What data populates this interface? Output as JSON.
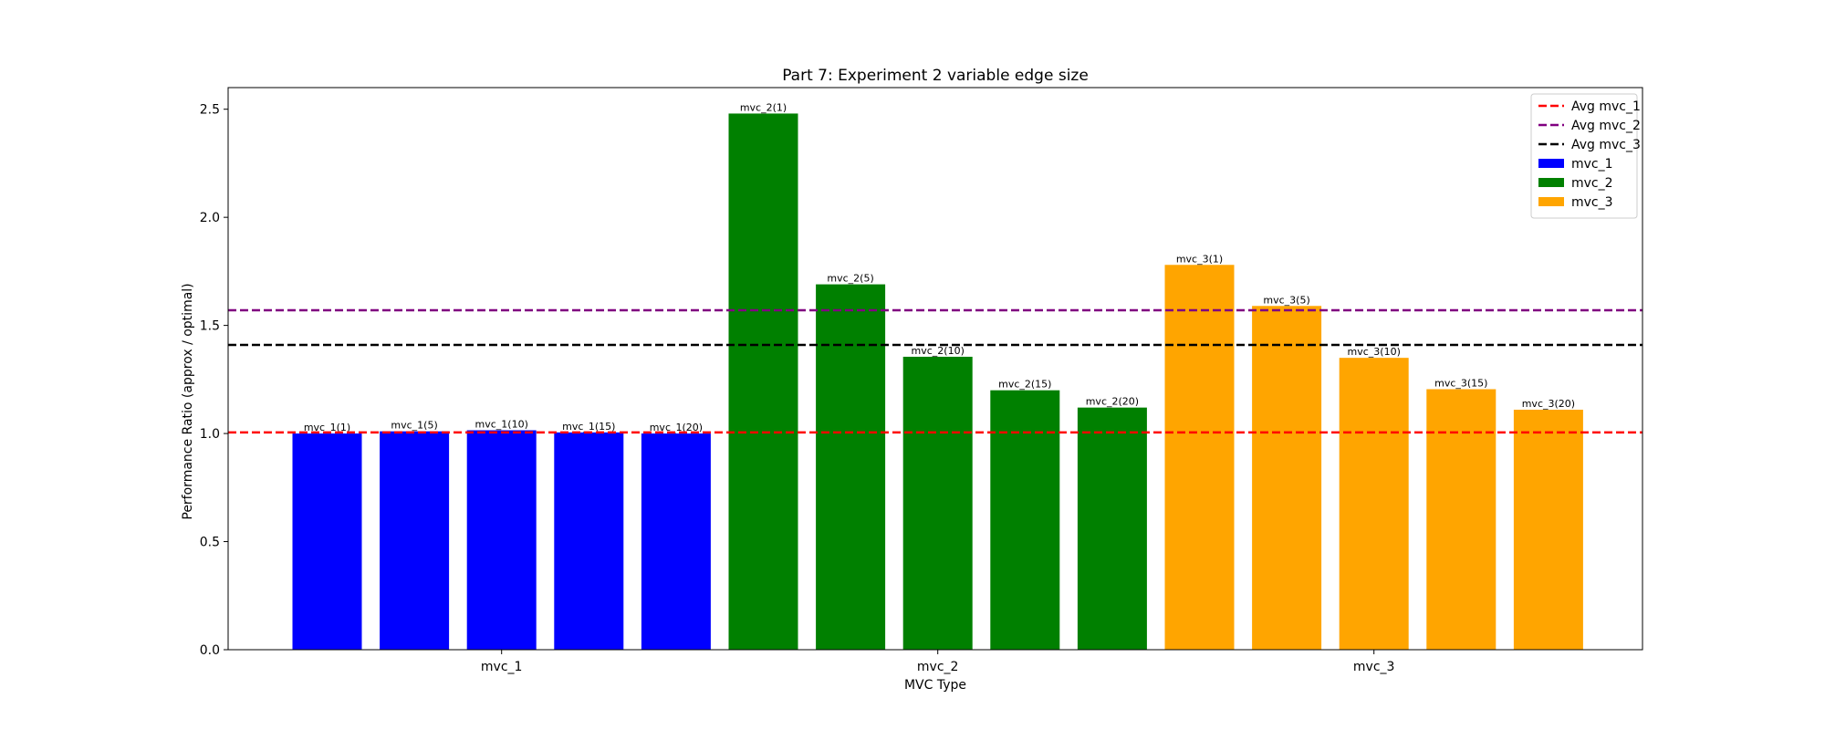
{
  "chart_data": {
    "type": "bar",
    "title": "Part 7: Experiment 2 variable edge size",
    "xlabel": "MVC Type",
    "ylabel": "Performance Ratio (approx / optimal)",
    "ylim": [
      0,
      2.6
    ],
    "yticks": [
      "0.0",
      "0.5",
      "1.0",
      "1.5",
      "2.0",
      "2.5"
    ],
    "grid": false,
    "legend_position": "top-right",
    "groups": [
      {
        "name": "mvc_1",
        "color": "#0000ff",
        "avg": 1.005,
        "avg_color": "#ff0000",
        "avg_label": "Avg mvc_1",
        "bars": [
          {
            "label": "mvc_1(1)",
            "value": 1.0
          },
          {
            "label": "mvc_1(5)",
            "value": 1.01
          },
          {
            "label": "mvc_1(10)",
            "value": 1.015
          },
          {
            "label": "mvc_1(15)",
            "value": 1.005
          },
          {
            "label": "mvc_1(20)",
            "value": 1.0
          }
        ]
      },
      {
        "name": "mvc_2",
        "color": "#008000",
        "avg": 1.57,
        "avg_color": "#800080",
        "avg_label": "Avg mvc_2",
        "bars": [
          {
            "label": "mvc_2(1)",
            "value": 2.48
          },
          {
            "label": "mvc_2(5)",
            "value": 1.69
          },
          {
            "label": "mvc_2(10)",
            "value": 1.355
          },
          {
            "label": "mvc_2(15)",
            "value": 1.2
          },
          {
            "label": "mvc_2(20)",
            "value": 1.12
          }
        ]
      },
      {
        "name": "mvc_3",
        "color": "#ffa500",
        "avg": 1.41,
        "avg_color": "#000000",
        "avg_label": "Avg mvc_3",
        "bars": [
          {
            "label": "mvc_3(1)",
            "value": 1.78
          },
          {
            "label": "mvc_3(5)",
            "value": 1.59
          },
          {
            "label": "mvc_3(10)",
            "value": 1.35
          },
          {
            "label": "mvc_3(15)",
            "value": 1.205
          },
          {
            "label": "mvc_3(20)",
            "value": 1.11
          }
        ]
      }
    ]
  }
}
